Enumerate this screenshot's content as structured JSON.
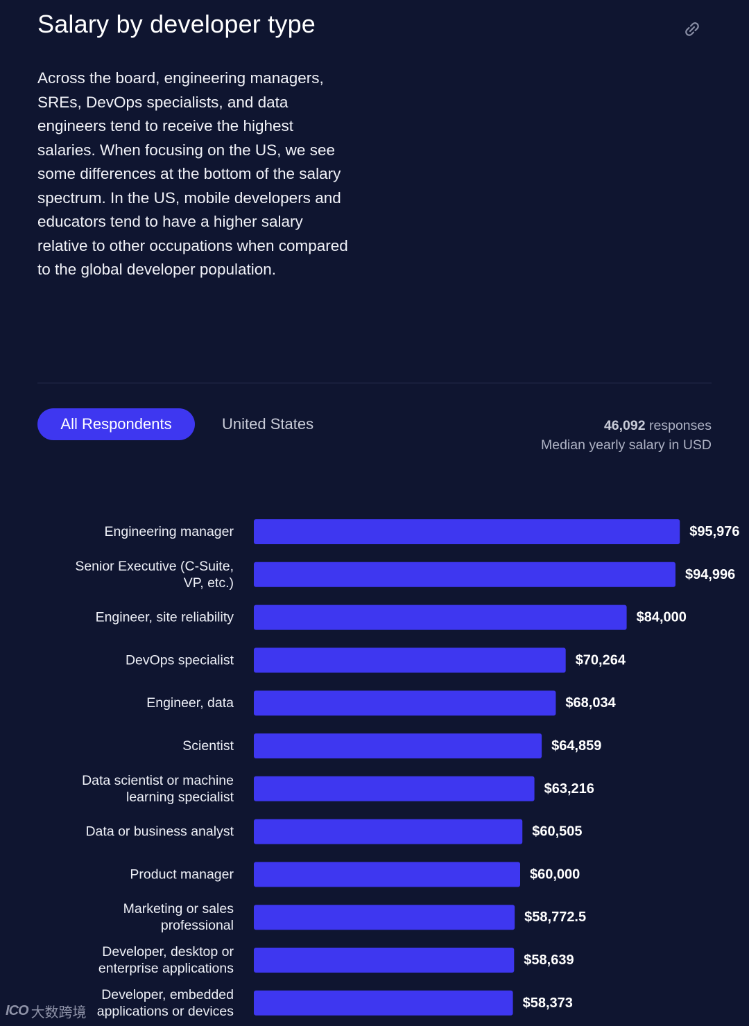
{
  "header": {
    "title": "Salary by developer type",
    "link_icon": "link-icon"
  },
  "intro": "Across the board, engineering managers, SREs, DevOps specialists, and data engineers tend to receive the highest salaries. When focusing on the US, we see some differences at the bottom of the salary spectrum. In the US, mobile developers and educators tend to have a higher salary relative to other occupations when compared to the global developer population.",
  "tabs": {
    "active": "All Respondents",
    "inactive": "United States"
  },
  "meta": {
    "responses_count": "46,092",
    "responses_label": "responses",
    "subtitle": "Median yearly salary in USD"
  },
  "colors": {
    "background": "#0f1530",
    "bar": "#3e37f0",
    "accent": "#3e37f0"
  },
  "chart_data": {
    "type": "bar",
    "orientation": "horizontal",
    "title": "Salary by developer type",
    "subtitle": "Median yearly salary in USD",
    "xlim": [
      0,
      100000
    ],
    "categories": [
      "Engineering manager",
      "Senior Executive (C-Suite, VP, etc.)",
      "Engineer, site reliability",
      "DevOps specialist",
      "Engineer, data",
      "Scientist",
      "Data scientist or machine learning specialist",
      "Data or business analyst",
      "Product manager",
      "Marketing or sales professional",
      "Developer, desktop or enterprise applications",
      "Developer, embedded applications or devices"
    ],
    "category_lines": [
      [
        "Engineering manager"
      ],
      [
        "Senior Executive (C-Suite,",
        "VP, etc.)"
      ],
      [
        "Engineer, site reliability"
      ],
      [
        "DevOps specialist"
      ],
      [
        "Engineer, data"
      ],
      [
        "Scientist"
      ],
      [
        "Data scientist or machine",
        "learning specialist"
      ],
      [
        "Data or business analyst"
      ],
      [
        "Product manager"
      ],
      [
        "Marketing or sales",
        "professional"
      ],
      [
        "Developer, desktop or",
        "enterprise applications"
      ],
      [
        "Developer, embedded",
        "applications or devices"
      ]
    ],
    "values": [
      95976,
      94996,
      84000,
      70264,
      68034,
      64859,
      63216,
      60505,
      60000,
      58772.5,
      58639,
      58373
    ],
    "value_labels": [
      "$95,976",
      "$94,996",
      "$84,000",
      "$70,264",
      "$68,034",
      "$64,859",
      "$63,216",
      "$60,505",
      "$60,000",
      "$58,772.5",
      "$58,639",
      "$58,373"
    ]
  },
  "watermark": {
    "logo": "ICO",
    "text": "大数跨境"
  }
}
